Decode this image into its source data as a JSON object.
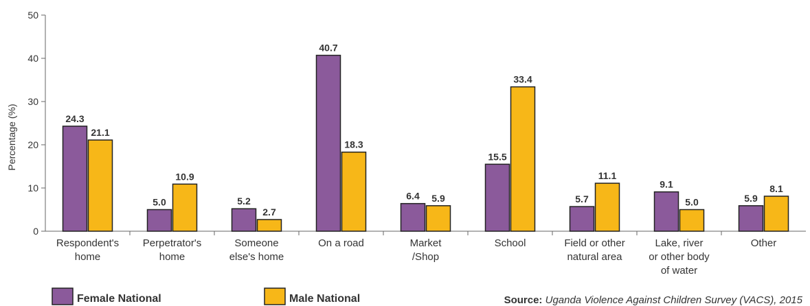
{
  "chart_data": {
    "type": "bar",
    "ylabel": "Percentage (%)",
    "ylim": [
      0,
      50
    ],
    "yticks": [
      "0",
      "10",
      "20",
      "30",
      "40",
      "50"
    ],
    "grid": false,
    "legend_position": "bottom-left",
    "categories": [
      [
        "Respondent's",
        "home"
      ],
      [
        "Perpetrator's",
        "home"
      ],
      [
        "Someone",
        "else's home"
      ],
      [
        "On a road"
      ],
      [
        "Market",
        "/Shop"
      ],
      [
        "School"
      ],
      [
        "Field or other",
        "natural area"
      ],
      [
        "Lake, river",
        "or other body",
        "of water"
      ],
      [
        "Other"
      ]
    ],
    "series": [
      {
        "name": "Female National",
        "color": "#8B5A9B",
        "values": [
          24.3,
          5.0,
          5.2,
          40.7,
          6.4,
          15.5,
          5.7,
          9.1,
          5.9
        ],
        "labels": [
          "24.3",
          "5.0",
          "5.2",
          "40.7",
          "6.4",
          "15.5",
          "5.7",
          "9.1",
          "5.9"
        ]
      },
      {
        "name": "Male National",
        "color": "#F7B718",
        "values": [
          21.1,
          10.9,
          2.7,
          18.3,
          5.9,
          33.4,
          11.1,
          5.0,
          8.1
        ],
        "labels": [
          "21.1",
          "10.9",
          "2.7",
          "18.3",
          "5.9",
          "33.4",
          "11.1",
          "5.0",
          "8.1"
        ]
      }
    ],
    "source_label": "Source:",
    "source_text": "Uganda Violence Against Children Survey (VACS), 2015"
  }
}
